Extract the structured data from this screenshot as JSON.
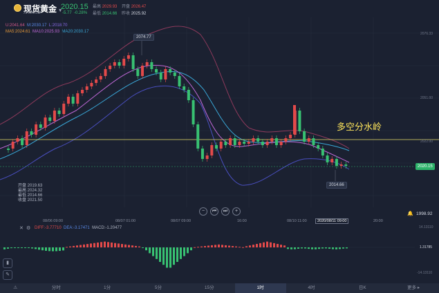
{
  "header": {
    "title": "现货黄金",
    "symbol": "XAUUSD",
    "price": "2020.15",
    "change": "-5.77",
    "change_pct": "-0.28%",
    "stats": {
      "high_label": "最高",
      "high": "2029.93",
      "open_label": "开盘",
      "open": "2026.47",
      "low_label": "最低",
      "low": "2014.66",
      "prev_label": "昨收",
      "prev": "2025.92"
    }
  },
  "indicators": {
    "boll": {
      "u": "U:2041.64",
      "m": "M:2030.17",
      "l": "L:2018.70"
    },
    "ma": {
      "ma5": "MA5:2024.61",
      "ma10": "MA10:2025.93",
      "ma20": "MA20:2030.17"
    }
  },
  "ohlc_box": {
    "open": "开盘 2019.63",
    "high": "最高 2024.32",
    "low": "最低 2014.66",
    "close": "收盘 2021.50"
  },
  "markers": {
    "high_tag": "2074.77",
    "low_tag": "2014.66",
    "current_price": "2020.15",
    "annotation": "多空分水岭"
  },
  "right_axis": {
    "top": "2076.33",
    "mid": "2051.00",
    "low": "2022.00",
    "bottom_value": "1998.92"
  },
  "x_axis": {
    "labels": [
      "08/06 09:00",
      "08/07 01:00",
      "08/07 09:00",
      "16:00",
      "08/10 11:00",
      "08/11 03:00",
      "20:00"
    ],
    "current": "2020/08/11 09:00"
  },
  "macd": {
    "diff": "DIFF:-3.77710",
    "dea": "DEA:-3.17471",
    "macd": "MACD:-1.20477",
    "axis_top": "14.13110",
    "axis_mid": "1.31785",
    "axis_bottom": "-14.13110"
  },
  "tabs": [
    "分时",
    "1分",
    "5分",
    "15分",
    "1时",
    "4时",
    "日K",
    "更多"
  ],
  "active_tab": 4,
  "colors": {
    "up": "#e34a4a",
    "down": "#38c172",
    "boll_upper": "#8e3a5c",
    "boll_lower": "#4a4fc0",
    "ma20": "#3aa8d8",
    "ma10": "#c069d8",
    "ma5": "#e89a3a",
    "annotation": "#ffe65c"
  }
}
